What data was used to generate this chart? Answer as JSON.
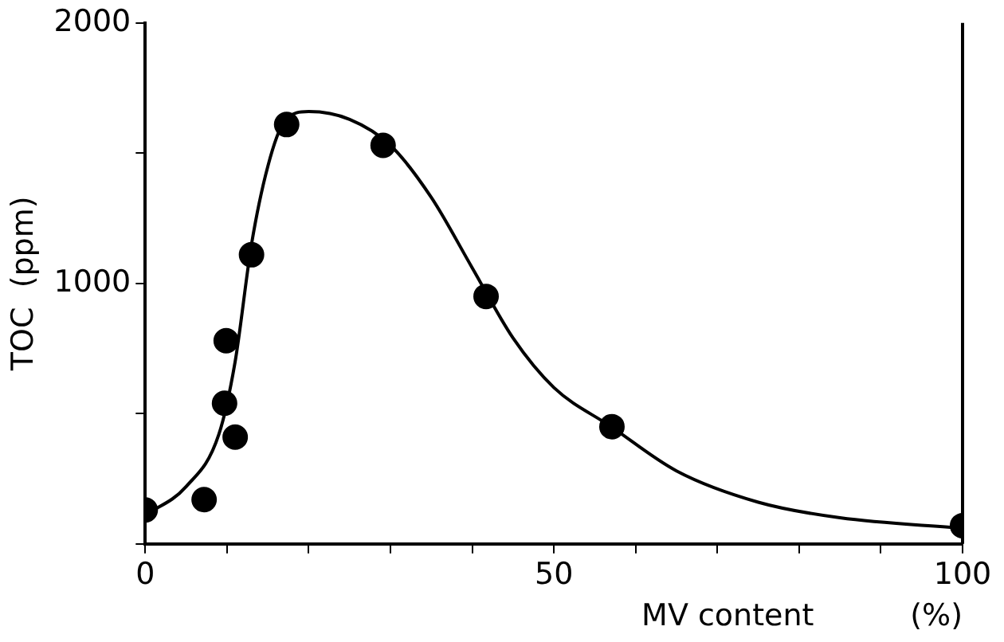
{
  "chart_data": {
    "type": "scatter",
    "xlabel": "MV content          (%)",
    "ylabel": "TOC  (ppm)",
    "xlim": [
      0,
      100
    ],
    "ylim": [
      0,
      2000
    ],
    "xticks": [
      0,
      {
        "value": 10,
        "label": null
      },
      {
        "value": 20,
        "label": null
      },
      {
        "value": 30,
        "label": null
      },
      {
        "value": 40,
        "label": null
      },
      50,
      {
        "value": 60,
        "label": null
      },
      {
        "value": 70,
        "label": null
      },
      {
        "value": 80,
        "label": null
      },
      {
        "value": 90,
        "label": null
      },
      100
    ],
    "yticks": [
      {
        "value": 0,
        "label": null
      },
      {
        "value": 500,
        "label": null
      },
      1000,
      {
        "value": 1500,
        "label": null
      },
      2000
    ],
    "grid": false,
    "legend": false,
    "series": [
      {
        "type": "scatter",
        "color": "#000000",
        "marker": "circle",
        "x": [
          0,
          7.2,
          9.7,
          9.9,
          11,
          13,
          17.3,
          29.1,
          41.7,
          57.1,
          100
        ],
        "values": [
          130,
          170,
          540,
          780,
          410,
          1110,
          1610,
          1530,
          950,
          450,
          70
        ]
      },
      {
        "type": "line",
        "color": "#000000",
        "marker": "none",
        "line_style": "solid",
        "x": [
          0,
          5,
          9,
          11,
          13,
          15,
          17,
          20,
          25,
          30,
          35,
          40,
          45,
          50,
          57,
          65,
          75,
          85,
          100
        ],
        "values": [
          110,
          220,
          420,
          700,
          1150,
          1450,
          1620,
          1660,
          1630,
          1530,
          1330,
          1060,
          790,
          600,
          450,
          280,
          160,
          100,
          60
        ]
      }
    ]
  }
}
